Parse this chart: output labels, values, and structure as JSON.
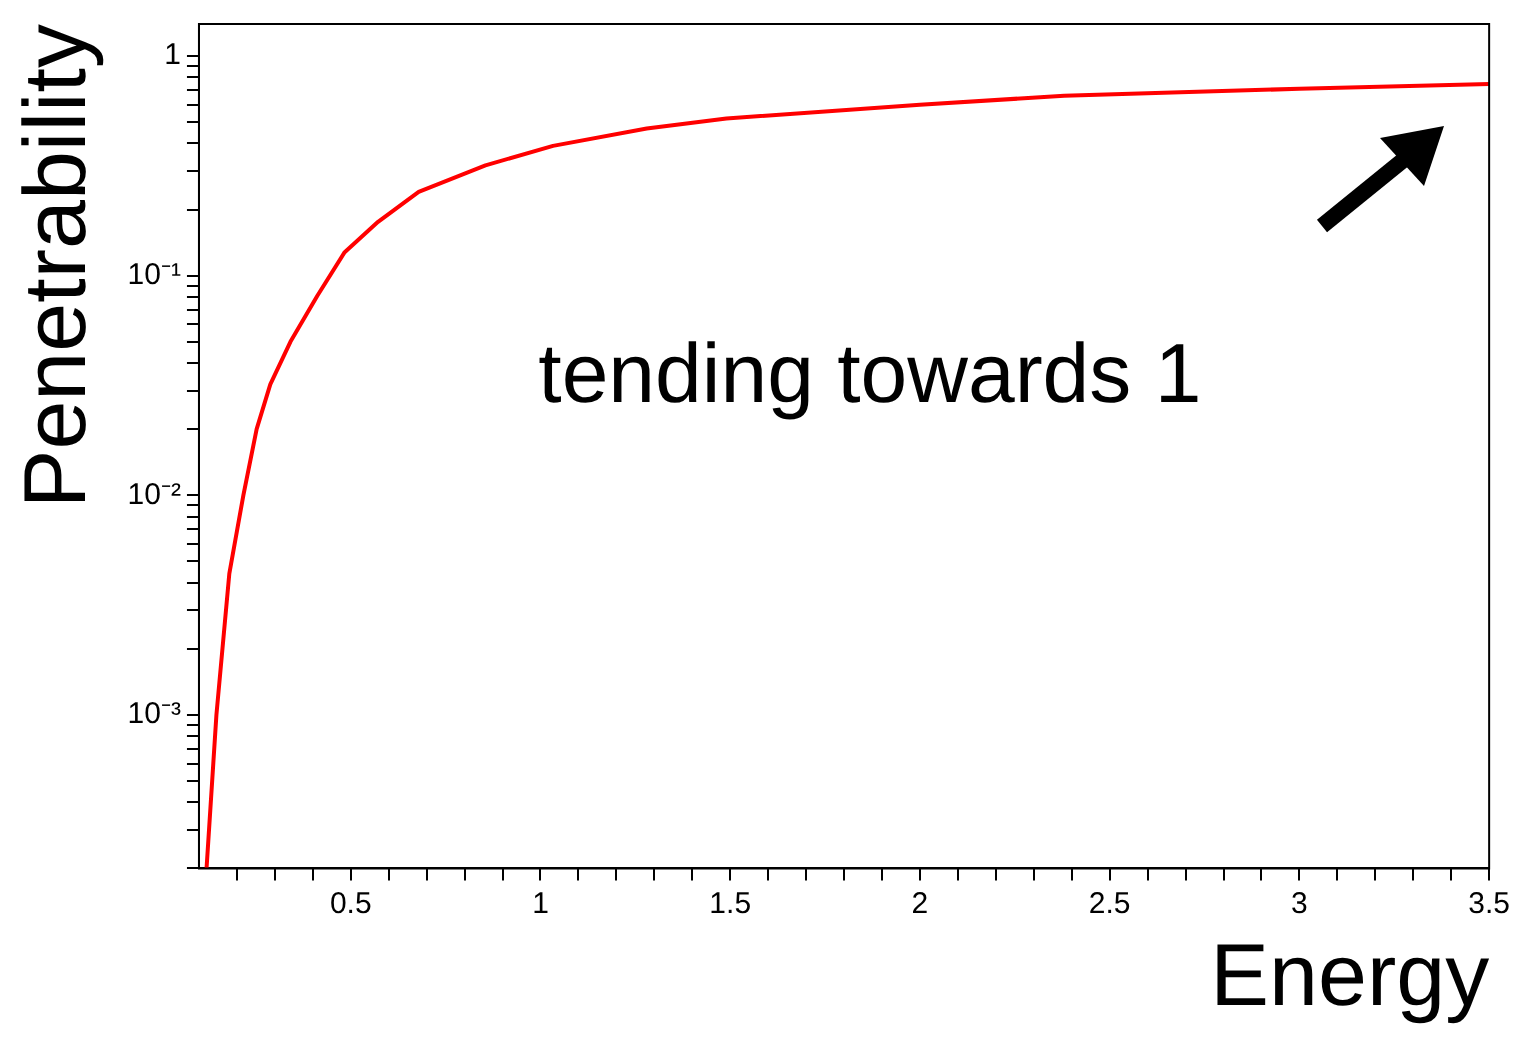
{
  "chart_data": {
    "type": "line",
    "xlabel": "Energy",
    "ylabel": "Penetrability",
    "annotations": [
      "tending towards 1"
    ],
    "x": [
      0.12,
      0.146,
      0.18,
      0.217,
      0.252,
      0.288,
      0.341,
      0.412,
      0.484,
      0.572,
      0.679,
      0.855,
      1.033,
      1.28,
      1.49,
      2.0,
      2.38,
      3.0,
      3.5
    ],
    "series": [
      {
        "color": "#ff0000",
        "values": [
          0.0002,
          0.001,
          0.0044,
          0.01,
          0.02,
          0.032,
          0.05,
          0.081,
          0.128,
          0.176,
          0.241,
          0.318,
          0.39,
          0.468,
          0.52,
          0.6,
          0.66,
          0.71,
          0.746
        ]
      }
    ],
    "log": "y",
    "xlim": [
      0.1,
      3.5
    ],
    "ylim": [
      0.0002,
      1.4
    ],
    "xticks": [
      {
        "value": 0.2,
        "label": null
      },
      {
        "value": 0.3,
        "label": null
      },
      {
        "value": 0.4,
        "label": null
      },
      0.5,
      {
        "value": 0.6,
        "label": null
      },
      {
        "value": 0.7,
        "label": null
      },
      {
        "value": 0.8,
        "label": null
      },
      {
        "value": 0.9,
        "label": null
      },
      1,
      {
        "value": 1.1,
        "label": null
      },
      {
        "value": 1.2,
        "label": null
      },
      {
        "value": 1.3,
        "label": null
      },
      {
        "value": 1.4,
        "label": null
      },
      1.5,
      {
        "value": 1.6,
        "label": null
      },
      {
        "value": 1.7,
        "label": null
      },
      {
        "value": 1.8,
        "label": null
      },
      {
        "value": 1.9,
        "label": null
      },
      2,
      {
        "value": 2.1,
        "label": null
      },
      {
        "value": 2.2,
        "label": null
      },
      {
        "value": 2.3,
        "label": null
      },
      {
        "value": 2.4,
        "label": null
      },
      2.5,
      {
        "value": 2.6,
        "label": null
      },
      {
        "value": 2.7,
        "label": null
      },
      {
        "value": 2.8,
        "label": null
      },
      {
        "value": 2.9,
        "label": null
      },
      3,
      {
        "value": 3.1,
        "label": null
      },
      {
        "value": 3.2,
        "label": null
      },
      {
        "value": 3.3,
        "label": null
      },
      {
        "value": 3.4,
        "label": null
      },
      3.5
    ],
    "yticks": [
      {
        "value": 0.0002,
        "label": null
      },
      {
        "value": 0.0003,
        "label": null
      },
      {
        "value": 0.0004,
        "label": null
      },
      {
        "value": 0.0005,
        "label": null
      },
      {
        "value": 0.0006,
        "label": null
      },
      {
        "value": 0.0007,
        "label": null
      },
      {
        "value": 0.0008,
        "label": null
      },
      {
        "value": 0.0009,
        "label": null
      },
      {
        "value": 0.001,
        "label": "10⁻³"
      },
      {
        "value": 0.002,
        "label": null
      },
      {
        "value": 0.003,
        "label": null
      },
      {
        "value": 0.004,
        "label": null
      },
      {
        "value": 0.005,
        "label": null
      },
      {
        "value": 0.006,
        "label": null
      },
      {
        "value": 0.007,
        "label": null
      },
      {
        "value": 0.008,
        "label": null
      },
      {
        "value": 0.009,
        "label": null
      },
      {
        "value": 0.01,
        "label": "10⁻²"
      },
      {
        "value": 0.02,
        "label": null
      },
      {
        "value": 0.03,
        "label": null
      },
      {
        "value": 0.04,
        "label": null
      },
      {
        "value": 0.05,
        "label": null
      },
      {
        "value": 0.06,
        "label": null
      },
      {
        "value": 0.07,
        "label": null
      },
      {
        "value": 0.08,
        "label": null
      },
      {
        "value": 0.09,
        "label": null
      },
      {
        "value": 0.1,
        "label": "10⁻¹"
      },
      {
        "value": 0.2,
        "label": null
      },
      {
        "value": 0.3,
        "label": null
      },
      {
        "value": 0.4,
        "label": null
      },
      {
        "value": 0.5,
        "label": null
      },
      {
        "value": 0.6,
        "label": null
      },
      {
        "value": 0.7,
        "label": null
      },
      {
        "value": 0.8,
        "label": null
      },
      {
        "value": 0.9,
        "label": null
      },
      1
    ],
    "grid": false,
    "legend": false,
    "marker": "none",
    "line_style": "solid"
  }
}
